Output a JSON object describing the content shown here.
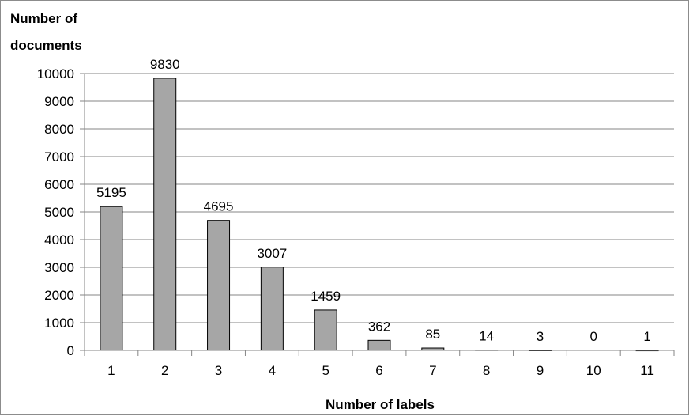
{
  "chart_data": {
    "type": "bar",
    "title": "",
    "ylabel_lines": [
      "Number of",
      "documents"
    ],
    "xlabel": "Number of labels",
    "categories": [
      "1",
      "2",
      "3",
      "4",
      "5",
      "6",
      "7",
      "8",
      "9",
      "10",
      "11"
    ],
    "values": [
      5195,
      9830,
      4695,
      3007,
      1459,
      362,
      85,
      14,
      3,
      0,
      1
    ],
    "data_labels": [
      "5195",
      "9830",
      "4695",
      "3007",
      "1459",
      "362",
      "85",
      "14",
      "3",
      "0",
      "1"
    ],
    "ylim": [
      0,
      10000
    ],
    "yticks": [
      0,
      1000,
      2000,
      3000,
      4000,
      5000,
      6000,
      7000,
      8000,
      9000,
      10000
    ],
    "ytick_labels": [
      "0",
      "1000",
      "2000",
      "3000",
      "4000",
      "5000",
      "6000",
      "7000",
      "8000",
      "9000",
      "10000"
    ],
    "grid": true,
    "legend": "none",
    "colors": {
      "bar_fill": "#a6a6a6",
      "bar_stroke": "#000000",
      "gridline": "#868686",
      "axis": "#868686"
    }
  }
}
